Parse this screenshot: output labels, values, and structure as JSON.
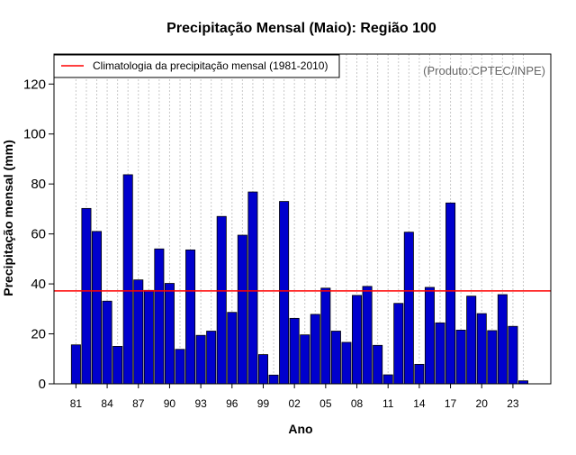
{
  "chart_data": {
    "type": "bar",
    "title": "Precipitação Mensal (Maio): Região 100",
    "xlabel": "Ano",
    "ylabel": "Precipitação mensal (mm)",
    "ylim": [
      0,
      132
    ],
    "yticks": [
      0,
      20,
      40,
      60,
      80,
      100,
      120
    ],
    "grid": "vertical dotted",
    "watermark": "(Produto:CPTEC/INPE)",
    "legend": {
      "label": "Climatologia da precipitação mensal (1981-2010)",
      "position": "top-left"
    },
    "reference_line": {
      "name": "Climatologia da precipitação mensal (1981-2010)",
      "value": 37.2
    },
    "years": [
      "81",
      "82",
      "83",
      "84",
      "85",
      "86",
      "87",
      "88",
      "89",
      "90",
      "91",
      "92",
      "93",
      "94",
      "95",
      "96",
      "97",
      "98",
      "99",
      "00",
      "01",
      "02",
      "03",
      "04",
      "05",
      "06",
      "07",
      "08",
      "09",
      "10",
      "11",
      "12",
      "13",
      "14",
      "15",
      "16",
      "17",
      "18",
      "19",
      "20",
      "21",
      "22",
      "23",
      "24"
    ],
    "tick_labels": [
      "81",
      "84",
      "87",
      "90",
      "93",
      "96",
      "99",
      "02",
      "05",
      "08",
      "11",
      "14",
      "17",
      "20",
      "23"
    ],
    "series": [
      {
        "name": "Precipitação mensal",
        "values": [
          15.6,
          70.2,
          61.0,
          33.1,
          15.0,
          83.7,
          41.6,
          37.4,
          54.0,
          40.2,
          13.8,
          53.6,
          19.4,
          21.1,
          67.0,
          28.6,
          59.5,
          76.8,
          11.7,
          3.5,
          73.0,
          26.2,
          19.6,
          27.8,
          38.3,
          21.1,
          16.6,
          35.4,
          39.0,
          15.4,
          3.6,
          32.2,
          60.7,
          7.8,
          38.6,
          24.4,
          72.4,
          21.5,
          35.1,
          28.1,
          21.3,
          35.7,
          23.0,
          1.2
        ]
      }
    ]
  },
  "colors": {
    "bar_fill": "#0000cd",
    "bar_stroke": "#000000",
    "reference_line": "#ff0000",
    "grid": "#c8c8c8",
    "watermark": "#666666"
  }
}
